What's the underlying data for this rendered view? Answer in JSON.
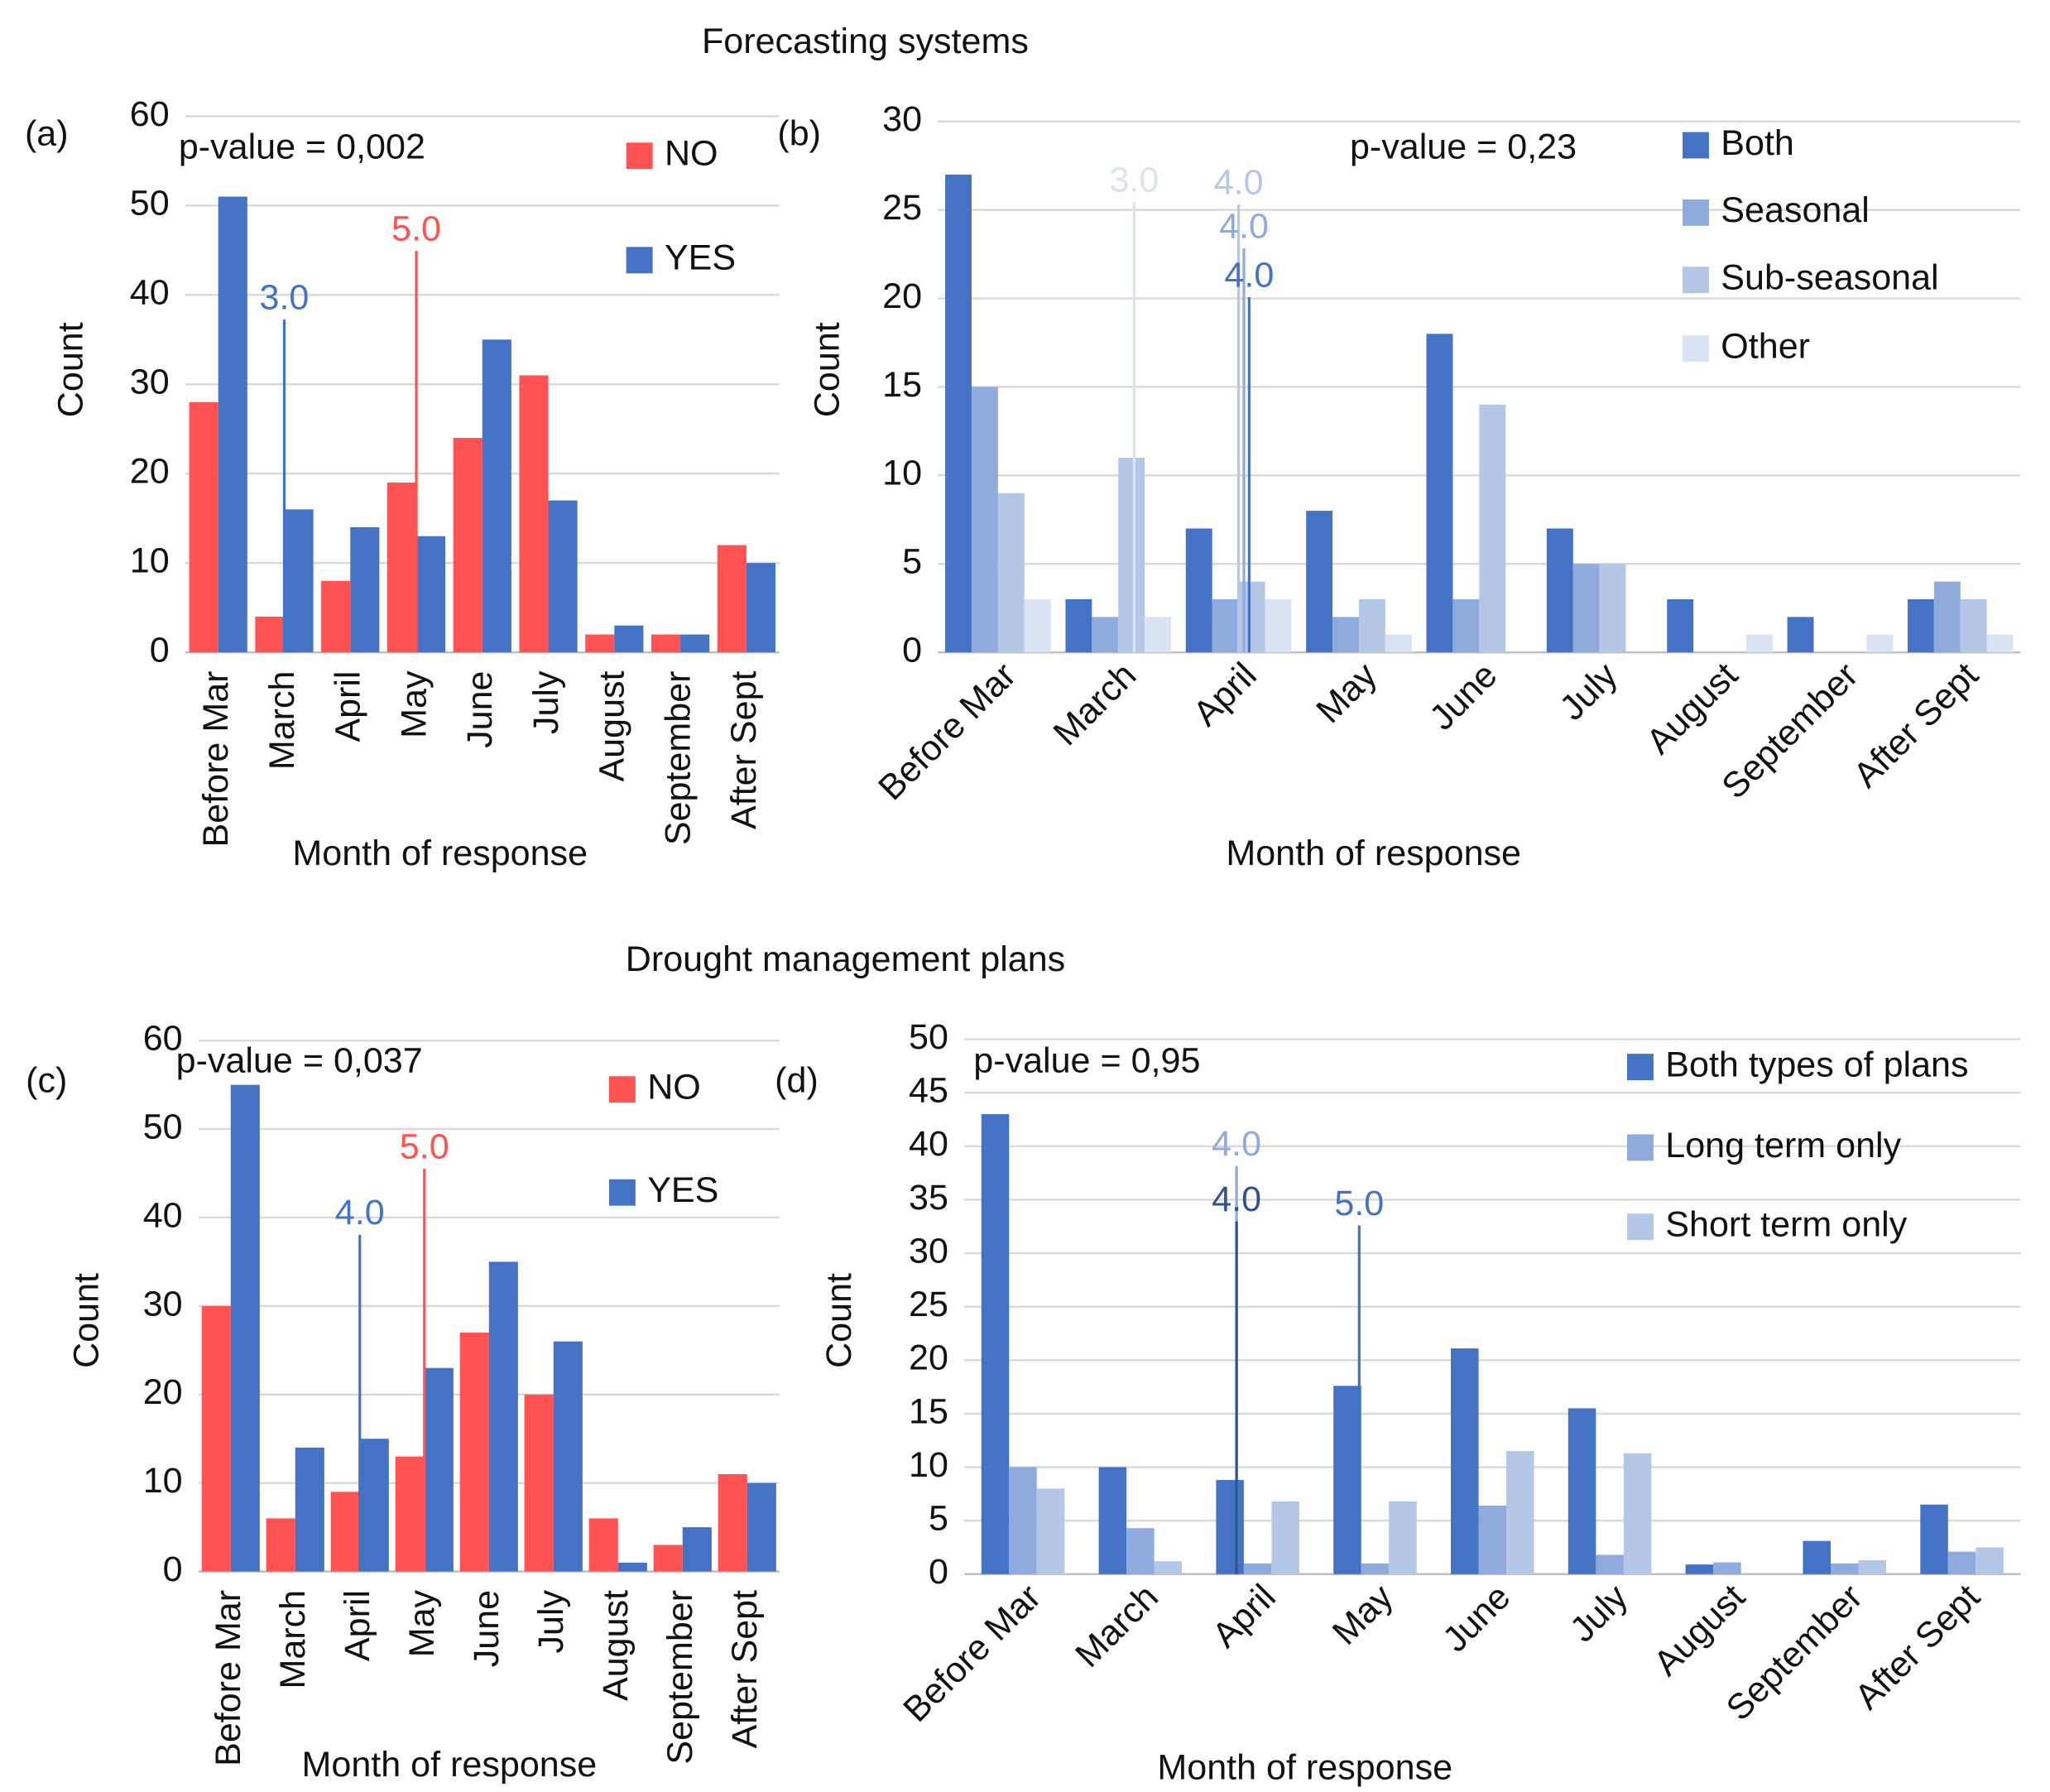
{
  "sections": [
    "Forecasting systems",
    "Drought management plans"
  ],
  "chart_data": [
    {
      "type": "bar",
      "panel": "(a)",
      "annotation": "p-value = 0,002",
      "xlabel": "Month of response",
      "ylabel": "Count",
      "categories": [
        "Before Mar",
        "March",
        "April",
        "May",
        "June",
        "July",
        "August",
        "September",
        "After Sept"
      ],
      "series": [
        {
          "name": "NO",
          "color": "#ff5252",
          "values": [
            28,
            4,
            8,
            19,
            24,
            31,
            2,
            2,
            12
          ]
        },
        {
          "name": "YES",
          "color": "#4472c4",
          "values": [
            51,
            16,
            14,
            13,
            35,
            17,
            3,
            2,
            10
          ]
        }
      ],
      "ylim": [
        0,
        60
      ],
      "yticks": [
        0,
        10,
        20,
        30,
        40,
        50,
        60
      ],
      "grid": true,
      "medians": [
        {
          "value": 3,
          "label": "3.0",
          "color": "#4472c4"
        },
        {
          "value": 5,
          "label": "5.0",
          "color": "#ff5252"
        }
      ]
    },
    {
      "type": "bar",
      "panel": "(b)",
      "annotation": "p-value = 0,23",
      "xlabel": "Month of response",
      "ylabel": "Count",
      "categories": [
        "Before Mar",
        "March",
        "April",
        "May",
        "June",
        "July",
        "August",
        "September",
        "After Sept"
      ],
      "series": [
        {
          "name": "Both",
          "color": "#4472c4",
          "values": [
            27,
            3,
            7,
            8,
            18,
            7,
            3,
            2,
            3
          ]
        },
        {
          "name": "Seasonal",
          "color": "#8faadc",
          "values": [
            15,
            2,
            3,
            2,
            3,
            5,
            0,
            0,
            4
          ]
        },
        {
          "name": "Sub-seasonal",
          "color": "#b4c7e7",
          "values": [
            9,
            11,
            4,
            3,
            14,
            5,
            0,
            0,
            3
          ]
        },
        {
          "name": "Other",
          "color": "#dae3f3",
          "values": [
            3,
            2,
            3,
            1,
            0,
            0,
            1,
            1,
            1
          ]
        }
      ],
      "ylim": [
        0,
        30
      ],
      "yticks": [
        0,
        5,
        10,
        15,
        20,
        25,
        30
      ],
      "grid": true,
      "medians": [
        {
          "value": 3,
          "label": "3.0",
          "color": "#dae3f3"
        },
        {
          "value": 4,
          "label": "4.0",
          "color": "#b4c7e7"
        },
        {
          "value": 4,
          "label": "4.0",
          "color": "#8faadc"
        },
        {
          "value": 4,
          "label": "4.0",
          "color": "#4472c4"
        }
      ]
    },
    {
      "type": "bar",
      "panel": "(c)",
      "annotation": "p-value = 0,037",
      "xlabel": "Month of response",
      "ylabel": "Count",
      "categories": [
        "Before Mar",
        "March",
        "April",
        "May",
        "June",
        "July",
        "August",
        "September",
        "After Sept"
      ],
      "series": [
        {
          "name": "NO",
          "color": "#ff5252",
          "values": [
            30,
            6,
            9,
            13,
            27,
            20,
            6,
            3,
            11
          ]
        },
        {
          "name": "YES",
          "color": "#4472c4",
          "values": [
            55,
            14,
            15,
            23,
            35,
            26,
            1,
            5,
            10
          ]
        }
      ],
      "ylim": [
        0,
        60
      ],
      "yticks": [
        0,
        10,
        20,
        30,
        40,
        50,
        60
      ],
      "grid": true,
      "medians": [
        {
          "value": 4,
          "label": "4.0",
          "color": "#4472c4"
        },
        {
          "value": 5,
          "label": "5.0",
          "color": "#ff5252"
        }
      ]
    },
    {
      "type": "bar",
      "panel": "(d)",
      "annotation": "p-value = 0,95",
      "xlabel": "Month of response",
      "ylabel": "Count",
      "categories": [
        "Before Mar",
        "March",
        "April",
        "May",
        "June",
        "July",
        "August",
        "September",
        "After Sept"
      ],
      "series": [
        {
          "name": "Both types of plans",
          "color": "#4472c4",
          "values": [
            43,
            10,
            8.8,
            17.6,
            21.1,
            15.5,
            0.9,
            3.1,
            6.5
          ]
        },
        {
          "name": "Long term only",
          "color": "#8faadc",
          "values": [
            10,
            4.3,
            1,
            1,
            6.4,
            1.8,
            1.1,
            1,
            2.1
          ]
        },
        {
          "name": "Short term only",
          "color": "#b4c7e7",
          "values": [
            8,
            1.2,
            6.8,
            6.8,
            11.5,
            11.3,
            0,
            1.3,
            2.5
          ]
        }
      ],
      "ylim": [
        0,
        50
      ],
      "yticks": [
        0,
        5,
        10,
        15,
        20,
        25,
        30,
        35,
        40,
        45,
        50
      ],
      "grid": true,
      "medians": [
        {
          "value": 4,
          "label": "4.0",
          "color": "#8faadc"
        },
        {
          "value": 4,
          "label": "4.0",
          "color": "#2f528f"
        },
        {
          "value": 5,
          "label": "5.0",
          "color": "#4472c4"
        }
      ]
    }
  ]
}
